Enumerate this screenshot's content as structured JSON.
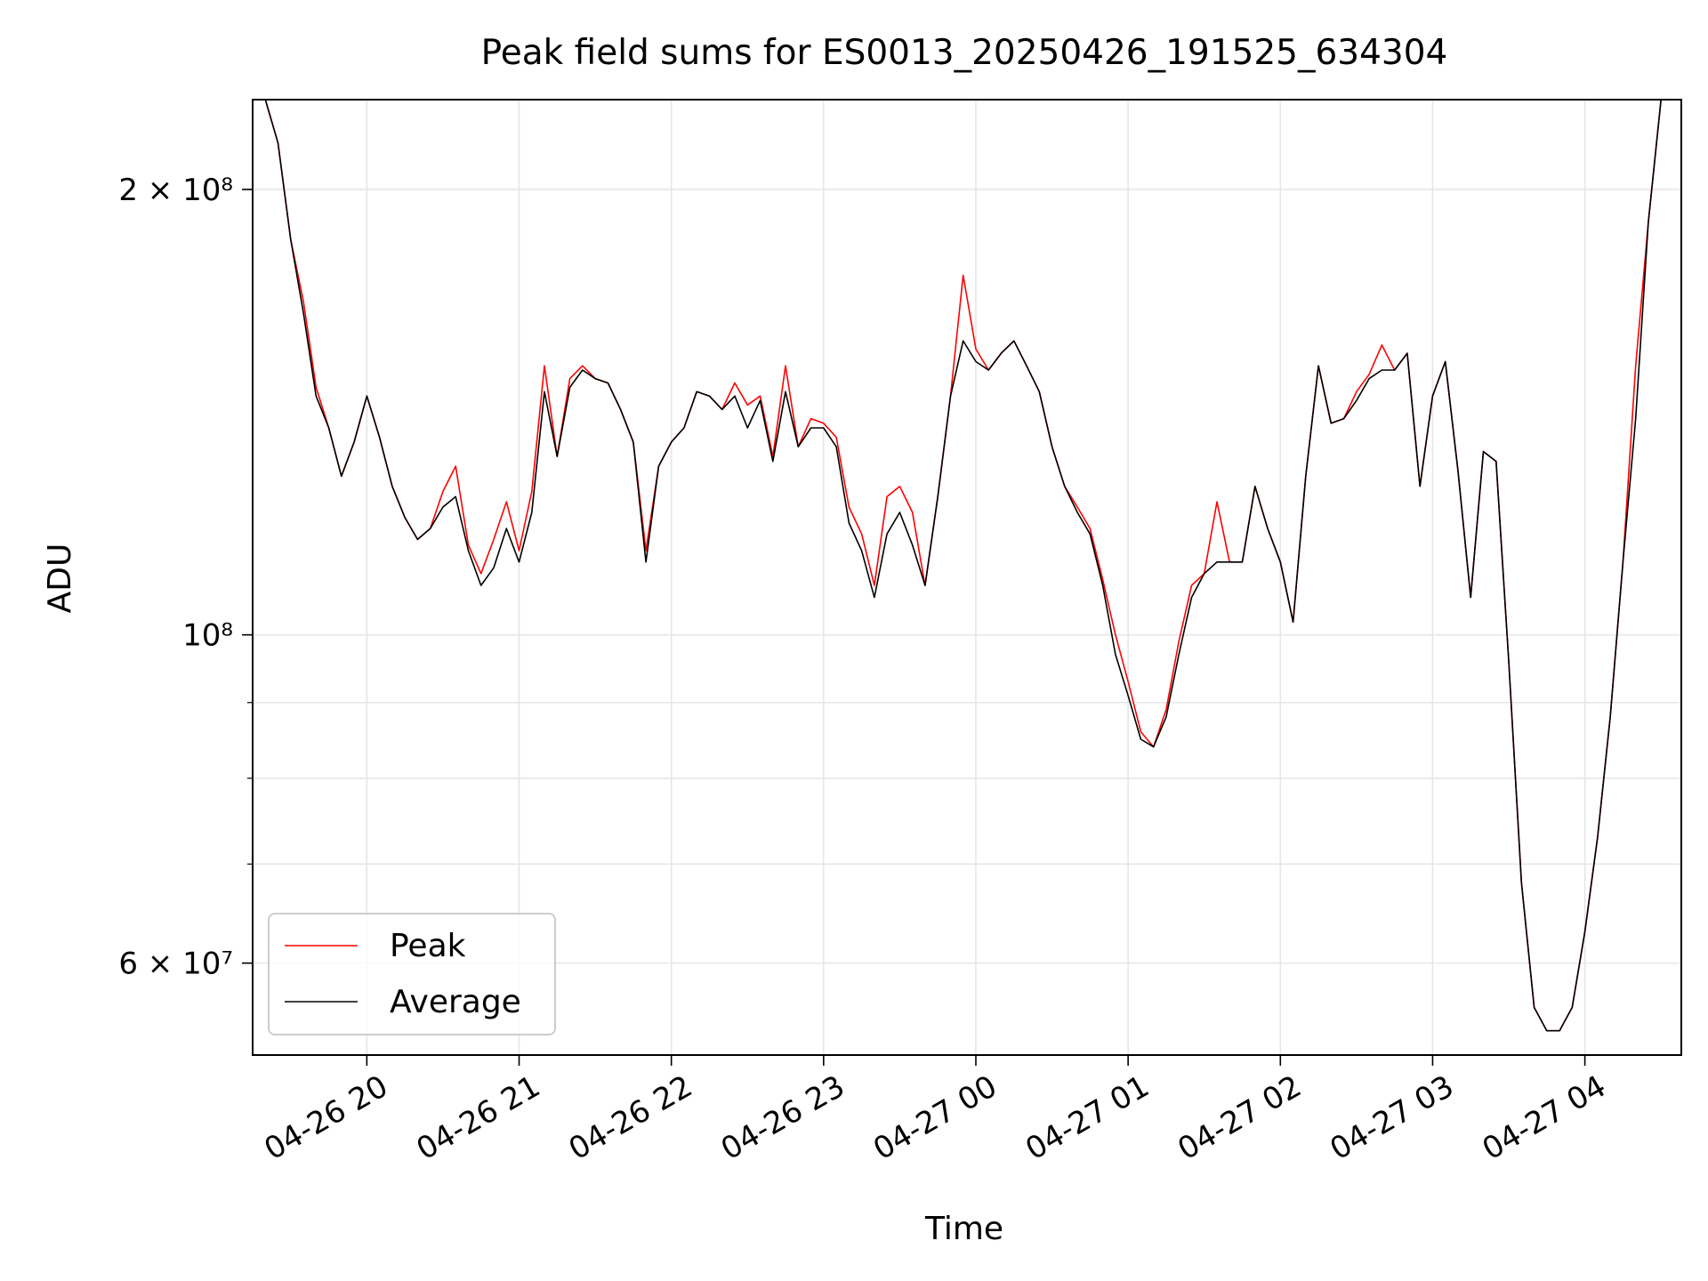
{
  "chart_data": {
    "type": "line",
    "title": "Peak field sums for ES0013_20250426_191525_634304",
    "xlabel": "Time",
    "ylabel": "ADU",
    "yscale": "log",
    "grid": true,
    "legend_position": "lower-left",
    "xlim": [
      "2025-04-26 19:15",
      "2025-04-27 04:38"
    ],
    "ylim": [
      52000000,
      230000000
    ],
    "x_ticks": [
      "2025-04-26 20:00",
      "2025-04-26 21:00",
      "2025-04-26 22:00",
      "2025-04-26 23:00",
      "2025-04-27 00:00",
      "2025-04-27 01:00",
      "2025-04-27 02:00",
      "2025-04-27 03:00",
      "2025-04-27 04:00"
    ],
    "x_tick_labels": [
      "04-26 20",
      "04-26 21",
      "04-26 22",
      "04-26 23",
      "04-27 00",
      "04-27 01",
      "04-27 02",
      "04-27 03",
      "04-27 04"
    ],
    "y_ticks": [
      {
        "value": 200000000,
        "label": "2 × 10⁸"
      },
      {
        "value": 100000000,
        "label": "10⁸"
      },
      {
        "value": 60000000,
        "label": "6 × 10⁷"
      }
    ],
    "series": [
      {
        "name": "Peak",
        "color": "#ff0000",
        "x": [
          "2025-04-26 19:15",
          "2025-04-26 19:20",
          "2025-04-26 19:25",
          "2025-04-26 19:30",
          "2025-04-26 19:35",
          "2025-04-26 19:40",
          "2025-04-26 19:45",
          "2025-04-26 19:50",
          "2025-04-26 19:55",
          "2025-04-26 20:00",
          "2025-04-26 20:05",
          "2025-04-26 20:10",
          "2025-04-26 20:15",
          "2025-04-26 20:20",
          "2025-04-26 20:25",
          "2025-04-26 20:30",
          "2025-04-26 20:35",
          "2025-04-26 20:40",
          "2025-04-26 20:45",
          "2025-04-26 20:50",
          "2025-04-26 20:55",
          "2025-04-26 21:00",
          "2025-04-26 21:05",
          "2025-04-26 21:10",
          "2025-04-26 21:15",
          "2025-04-26 21:20",
          "2025-04-26 21:25",
          "2025-04-26 21:30",
          "2025-04-26 21:35",
          "2025-04-26 21:40",
          "2025-04-26 21:45",
          "2025-04-26 21:50",
          "2025-04-26 21:55",
          "2025-04-26 22:00",
          "2025-04-26 22:05",
          "2025-04-26 22:10",
          "2025-04-26 22:15",
          "2025-04-26 22:20",
          "2025-04-26 22:25",
          "2025-04-26 22:30",
          "2025-04-26 22:35",
          "2025-04-26 22:40",
          "2025-04-26 22:45",
          "2025-04-26 22:50",
          "2025-04-26 22:55",
          "2025-04-26 23:00",
          "2025-04-26 23:05",
          "2025-04-26 23:10",
          "2025-04-26 23:15",
          "2025-04-26 23:20",
          "2025-04-26 23:25",
          "2025-04-26 23:30",
          "2025-04-26 23:35",
          "2025-04-26 23:40",
          "2025-04-26 23:45",
          "2025-04-26 23:50",
          "2025-04-26 23:55",
          "2025-04-27 00:00",
          "2025-04-27 00:05",
          "2025-04-27 00:10",
          "2025-04-27 00:15",
          "2025-04-27 00:20",
          "2025-04-27 00:25",
          "2025-04-27 00:30",
          "2025-04-27 00:35",
          "2025-04-27 00:40",
          "2025-04-27 00:45",
          "2025-04-27 00:50",
          "2025-04-27 00:55",
          "2025-04-27 01:00",
          "2025-04-27 01:05",
          "2025-04-27 01:10",
          "2025-04-27 01:15",
          "2025-04-27 01:20",
          "2025-04-27 01:25",
          "2025-04-27 01:30",
          "2025-04-27 01:35",
          "2025-04-27 01:40",
          "2025-04-27 01:45",
          "2025-04-27 01:50",
          "2025-04-27 01:55",
          "2025-04-27 02:00",
          "2025-04-27 02:05",
          "2025-04-27 02:10",
          "2025-04-27 02:15",
          "2025-04-27 02:20",
          "2025-04-27 02:25",
          "2025-04-27 02:30",
          "2025-04-27 02:35",
          "2025-04-27 02:40",
          "2025-04-27 02:45",
          "2025-04-27 02:50",
          "2025-04-27 02:55",
          "2025-04-27 03:00",
          "2025-04-27 03:05",
          "2025-04-27 03:10",
          "2025-04-27 03:15",
          "2025-04-27 03:20",
          "2025-04-27 03:25",
          "2025-04-27 03:30",
          "2025-04-27 03:35",
          "2025-04-27 03:40",
          "2025-04-27 03:45",
          "2025-04-27 03:50",
          "2025-04-27 03:55",
          "2025-04-27 04:00",
          "2025-04-27 04:05",
          "2025-04-27 04:10",
          "2025-04-27 04:15",
          "2025-04-27 04:20",
          "2025-04-27 04:25",
          "2025-04-27 04:30",
          "2025-04-27 04:35"
        ],
        "y": [
          240000000,
          235000000,
          215000000,
          185000000,
          168000000,
          147000000,
          138000000,
          128000000,
          135000000,
          145000000,
          136000000,
          126000000,
          120000000,
          116000000,
          118000000,
          125000000,
          130000000,
          115000000,
          110000000,
          116000000,
          123000000,
          114000000,
          125000000,
          152000000,
          132000000,
          149000000,
          152000000,
          149000000,
          148000000,
          142000000,
          135000000,
          114000000,
          130000000,
          135000000,
          138000000,
          146000000,
          145000000,
          142000000,
          148000000,
          143000000,
          145000000,
          132000000,
          152000000,
          134000000,
          140000000,
          139000000,
          136000000,
          122000000,
          117000000,
          108000000,
          124000000,
          126000000,
          121000000,
          108000000,
          124000000,
          145000000,
          175000000,
          156000000,
          151000000,
          155000000,
          158000000,
          152000000,
          146000000,
          134000000,
          126000000,
          122000000,
          118000000,
          109000000,
          100000000,
          93000000,
          86000000,
          84000000,
          89000000,
          99000000,
          108000000,
          110000000,
          123000000,
          112000000,
          112000000,
          126000000,
          118000000,
          112000000,
          102000000,
          128000000,
          152000000,
          139000000,
          140000000,
          146000000,
          150000000,
          157000000,
          151000000,
          155000000,
          126000000,
          145000000,
          153000000,
          129000000,
          106000000,
          133000000,
          131000000,
          96000000,
          68000000,
          56000000,
          54000000,
          54000000,
          56000000,
          63000000,
          73000000,
          88000000,
          112000000,
          152000000,
          190000000,
          240000000,
          240000000
        ]
      },
      {
        "name": "Average",
        "color": "#000000",
        "x": [
          "2025-04-26 19:15",
          "2025-04-26 19:20",
          "2025-04-26 19:25",
          "2025-04-26 19:30",
          "2025-04-26 19:35",
          "2025-04-26 19:40",
          "2025-04-26 19:45",
          "2025-04-26 19:50",
          "2025-04-26 19:55",
          "2025-04-26 20:00",
          "2025-04-26 20:05",
          "2025-04-26 20:10",
          "2025-04-26 20:15",
          "2025-04-26 20:20",
          "2025-04-26 20:25",
          "2025-04-26 20:30",
          "2025-04-26 20:35",
          "2025-04-26 20:40",
          "2025-04-26 20:45",
          "2025-04-26 20:50",
          "2025-04-26 20:55",
          "2025-04-26 21:00",
          "2025-04-26 21:05",
          "2025-04-26 21:10",
          "2025-04-26 21:15",
          "2025-04-26 21:20",
          "2025-04-26 21:25",
          "2025-04-26 21:30",
          "2025-04-26 21:35",
          "2025-04-26 21:40",
          "2025-04-26 21:45",
          "2025-04-26 21:50",
          "2025-04-26 21:55",
          "2025-04-26 22:00",
          "2025-04-26 22:05",
          "2025-04-26 22:10",
          "2025-04-26 22:15",
          "2025-04-26 22:20",
          "2025-04-26 22:25",
          "2025-04-26 22:30",
          "2025-04-26 22:35",
          "2025-04-26 22:40",
          "2025-04-26 22:45",
          "2025-04-26 22:50",
          "2025-04-26 22:55",
          "2025-04-26 23:00",
          "2025-04-26 23:05",
          "2025-04-26 23:10",
          "2025-04-26 23:15",
          "2025-04-26 23:20",
          "2025-04-26 23:25",
          "2025-04-26 23:30",
          "2025-04-26 23:35",
          "2025-04-26 23:40",
          "2025-04-26 23:45",
          "2025-04-26 23:50",
          "2025-04-26 23:55",
          "2025-04-27 00:00",
          "2025-04-27 00:05",
          "2025-04-27 00:10",
          "2025-04-27 00:15",
          "2025-04-27 00:20",
          "2025-04-27 00:25",
          "2025-04-27 00:30",
          "2025-04-27 00:35",
          "2025-04-27 00:40",
          "2025-04-27 00:45",
          "2025-04-27 00:50",
          "2025-04-27 00:55",
          "2025-04-27 01:00",
          "2025-04-27 01:05",
          "2025-04-27 01:10",
          "2025-04-27 01:15",
          "2025-04-27 01:20",
          "2025-04-27 01:25",
          "2025-04-27 01:30",
          "2025-04-27 01:35",
          "2025-04-27 01:40",
          "2025-04-27 01:45",
          "2025-04-27 01:50",
          "2025-04-27 01:55",
          "2025-04-27 02:00",
          "2025-04-27 02:05",
          "2025-04-27 02:10",
          "2025-04-27 02:15",
          "2025-04-27 02:20",
          "2025-04-27 02:25",
          "2025-04-27 02:30",
          "2025-04-27 02:35",
          "2025-04-27 02:40",
          "2025-04-27 02:45",
          "2025-04-27 02:50",
          "2025-04-27 02:55",
          "2025-04-27 03:00",
          "2025-04-27 03:05",
          "2025-04-27 03:10",
          "2025-04-27 03:15",
          "2025-04-27 03:20",
          "2025-04-27 03:25",
          "2025-04-27 03:30",
          "2025-04-27 03:35",
          "2025-04-27 03:40",
          "2025-04-27 03:45",
          "2025-04-27 03:50",
          "2025-04-27 03:55",
          "2025-04-27 04:00",
          "2025-04-27 04:05",
          "2025-04-27 04:10",
          "2025-04-27 04:15",
          "2025-04-27 04:20",
          "2025-04-27 04:25",
          "2025-04-27 04:30",
          "2025-04-27 04:35"
        ],
        "y": [
          240000000,
          235000000,
          215000000,
          185000000,
          165000000,
          145000000,
          138000000,
          128000000,
          135000000,
          145000000,
          136000000,
          126000000,
          120000000,
          116000000,
          118000000,
          122000000,
          124000000,
          114000000,
          108000000,
          111000000,
          118000000,
          112000000,
          121000000,
          146000000,
          132000000,
          147000000,
          151000000,
          149000000,
          148000000,
          142000000,
          135000000,
          112000000,
          130000000,
          135000000,
          138000000,
          146000000,
          145000000,
          142000000,
          145000000,
          138000000,
          144000000,
          131000000,
          146000000,
          134000000,
          138000000,
          138000000,
          134000000,
          119000000,
          114000000,
          106000000,
          117000000,
          121000000,
          115000000,
          108000000,
          124000000,
          145000000,
          158000000,
          153000000,
          151000000,
          155000000,
          158000000,
          152000000,
          146000000,
          134000000,
          126000000,
          121000000,
          117000000,
          108000000,
          97000000,
          91000000,
          85000000,
          84000000,
          88000000,
          97000000,
          106000000,
          110000000,
          112000000,
          112000000,
          112000000,
          126000000,
          118000000,
          112000000,
          102000000,
          128000000,
          152000000,
          139000000,
          140000000,
          144000000,
          149000000,
          151000000,
          151000000,
          155000000,
          126000000,
          145000000,
          153000000,
          129000000,
          106000000,
          133000000,
          131000000,
          96000000,
          68000000,
          56000000,
          54000000,
          54000000,
          56000000,
          63000000,
          73000000,
          88000000,
          112000000,
          140000000,
          190000000,
          240000000,
          240000000
        ]
      }
    ]
  }
}
